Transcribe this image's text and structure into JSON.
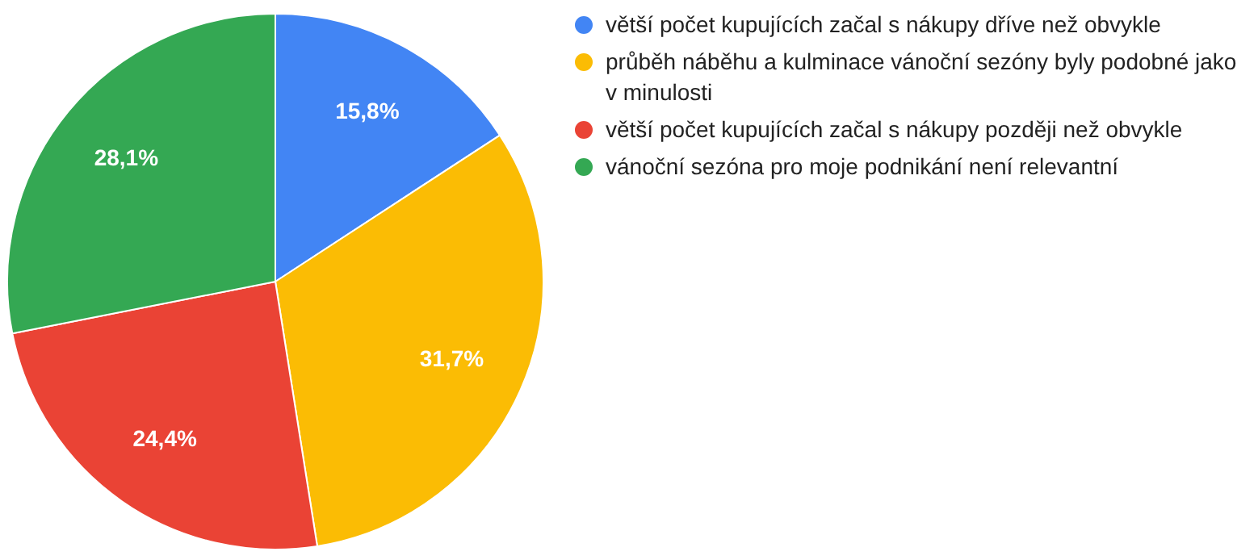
{
  "chart_data": {
    "type": "pie",
    "categories": [
      "větší počet kupujících začal s nákupy dříve než obvykle",
      "průběh náběhu a kulminace vánoční sezóny byly podobné jako v minulosti",
      "větší počet kupujících začal s nákupy později než obvykle",
      "vánoční sezóna pro moje podnikání není relevantní"
    ],
    "values": [
      15.8,
      31.7,
      24.4,
      28.1
    ],
    "value_labels": [
      "15,8%",
      "31,7%",
      "24,4%",
      "28,1%"
    ],
    "colors": [
      "#4285f4",
      "#fbbc04",
      "#ea4335",
      "#34a853"
    ],
    "legend": "right"
  }
}
